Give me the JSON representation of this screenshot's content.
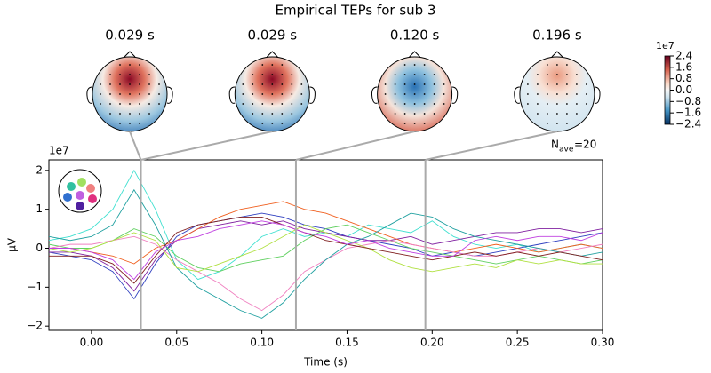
{
  "chart_data": {
    "type": "line",
    "title": "Empirical TEPs for sub 3",
    "xlabel": "Time (s)",
    "ylabel": "µV",
    "y_offset_label": "1e7",
    "nave_label": [
      "N",
      "ave",
      "=20"
    ],
    "topomaps": [
      {
        "title": "0.029 s",
        "time": 0.029
      },
      {
        "title": "0.029 s",
        "time": 0.029
      },
      {
        "title": "0.120 s",
        "time": 0.12
      },
      {
        "title": "0.196 s",
        "time": 0.196
      }
    ],
    "colorbar": {
      "offset_label": "1e7",
      "clim": [
        -2.4,
        2.4
      ],
      "ticks": [
        {
          "value": 2.4,
          "label": "2.4"
        },
        {
          "value": 1.6,
          "label": "1.6"
        },
        {
          "value": 0.8,
          "label": "0.8"
        },
        {
          "value": 0,
          "label": "0.0"
        },
        {
          "value": -0.8,
          "label": "−0.8"
        },
        {
          "value": -1.6,
          "label": "−1.6"
        },
        {
          "value": -2.4,
          "label": "−2.4"
        }
      ]
    },
    "xlim": [
      -0.025,
      0.3
    ],
    "xticks": [
      {
        "value": 0,
        "label": "0.00"
      },
      {
        "value": 0.05,
        "label": "0.05"
      },
      {
        "value": 0.1,
        "label": "0.10"
      },
      {
        "value": 0.15,
        "label": "0.15"
      },
      {
        "value": 0.2,
        "label": "0.20"
      },
      {
        "value": 0.25,
        "label": "0.25"
      },
      {
        "value": 0.3,
        "label": "0.30"
      }
    ],
    "ylim": [
      -2.11,
      2.27
    ],
    "yticks": [
      {
        "value": -2,
        "label": "−2"
      },
      {
        "value": -1,
        "label": "−1"
      },
      0,
      1,
      2
    ],
    "x": [
      -0.025,
      -0.0125,
      0,
      0.0125,
      0.025,
      0.0375,
      0.05,
      0.0625,
      0.075,
      0.0875,
      0.1,
      0.1125,
      0.125,
      0.1375,
      0.15,
      0.1625,
      0.175,
      0.1875,
      0.2,
      0.2125,
      0.225,
      0.2375,
      0.25,
      0.2625,
      0.275,
      0.2875,
      0.3
    ],
    "series": [
      {
        "color": "#40e0d0",
        "values": [
          0.2,
          0.3,
          0.5,
          1.0,
          2.0,
          1.0,
          -0.3,
          -0.8,
          -0.6,
          -0.2,
          0.3,
          0.5,
          0.3,
          0.4,
          0.3,
          0.6,
          0.5,
          0.4,
          0.7,
          0.3,
          0.1,
          0.0,
          0.1,
          -0.1,
          0.0,
          0.1,
          0.0
        ]
      },
      {
        "color": "#3040c0",
        "values": [
          -0.1,
          -0.2,
          -0.3,
          -0.6,
          -1.3,
          -0.4,
          0.3,
          0.6,
          0.7,
          0.8,
          0.9,
          0.8,
          0.6,
          0.5,
          0.3,
          0.2,
          0.1,
          0.0,
          -0.2,
          -0.1,
          -0.2,
          -0.1,
          0.0,
          0.1,
          0.2,
          0.3,
          0.4
        ]
      },
      {
        "color": "#8020a0",
        "values": [
          -0.1,
          -0.1,
          -0.2,
          -0.5,
          -1.1,
          -0.3,
          0.2,
          0.5,
          0.6,
          0.7,
          0.6,
          0.7,
          0.5,
          0.4,
          0.3,
          0.2,
          0.2,
          0.3,
          0.1,
          0.2,
          0.3,
          0.4,
          0.4,
          0.5,
          0.5,
          0.4,
          0.5
        ]
      },
      {
        "color": "#60d060",
        "values": [
          0.1,
          0.0,
          0.0,
          0.2,
          0.5,
          0.3,
          -0.2,
          -0.5,
          -0.6,
          -0.4,
          -0.3,
          -0.2,
          0.2,
          0.5,
          0.6,
          0.4,
          0.2,
          0.0,
          -0.1,
          -0.2,
          -0.3,
          -0.4,
          -0.3,
          -0.2,
          -0.3,
          -0.4,
          -0.3
        ]
      },
      {
        "color": "#f06020",
        "values": [
          0.0,
          0.0,
          -0.1,
          -0.2,
          -0.4,
          0.0,
          0.2,
          0.5,
          0.8,
          1.0,
          1.1,
          1.2,
          1.0,
          0.9,
          0.7,
          0.5,
          0.3,
          0.1,
          0.0,
          -0.1,
          0.0,
          0.1,
          0.0,
          -0.1,
          0.0,
          0.1,
          0.0
        ]
      },
      {
        "color": "#f080c0",
        "values": [
          0.0,
          0.1,
          0.1,
          0.2,
          0.3,
          0.1,
          -0.3,
          -0.6,
          -0.9,
          -1.3,
          -1.6,
          -1.2,
          -0.6,
          -0.3,
          0.0,
          0.1,
          0.2,
          0.1,
          0.0,
          -0.1,
          -0.2,
          -0.2,
          -0.1,
          0.0,
          -0.1,
          0.0,
          0.1
        ]
      },
      {
        "color": "#20a0a0",
        "values": [
          0.3,
          0.2,
          0.3,
          0.6,
          1.5,
          0.6,
          -0.5,
          -1.0,
          -1.3,
          -1.6,
          -1.8,
          -1.4,
          -0.8,
          -0.3,
          0.1,
          0.3,
          0.6,
          0.9,
          0.8,
          0.5,
          0.3,
          0.2,
          0.1,
          0.0,
          -0.1,
          -0.2,
          -0.1
        ]
      },
      {
        "color": "#b0e040",
        "values": [
          0.0,
          -0.1,
          0.0,
          0.2,
          0.4,
          0.2,
          -0.5,
          -0.6,
          -0.4,
          -0.2,
          0.0,
          0.3,
          0.6,
          0.4,
          0.2,
          0.0,
          -0.3,
          -0.5,
          -0.6,
          -0.5,
          -0.4,
          -0.5,
          -0.3,
          -0.4,
          -0.3,
          -0.4,
          -0.4
        ]
      },
      {
        "color": "#802020",
        "values": [
          -0.2,
          -0.2,
          -0.2,
          -0.4,
          -0.9,
          -0.2,
          0.4,
          0.6,
          0.7,
          0.8,
          0.8,
          0.6,
          0.4,
          0.2,
          0.1,
          0.0,
          -0.1,
          -0.2,
          -0.3,
          -0.2,
          -0.1,
          -0.2,
          -0.1,
          -0.2,
          -0.1,
          -0.2,
          -0.3
        ]
      },
      {
        "color": "#c040e0",
        "values": [
          0.0,
          0.0,
          -0.1,
          -0.3,
          -0.8,
          -0.1,
          0.2,
          0.3,
          0.5,
          0.6,
          0.7,
          0.6,
          0.4,
          0.3,
          0.1,
          0.2,
          0.0,
          -0.1,
          -0.2,
          -0.2,
          0.2,
          0.3,
          0.2,
          0.3,
          0.3,
          0.2,
          0.4
        ]
      }
    ]
  }
}
